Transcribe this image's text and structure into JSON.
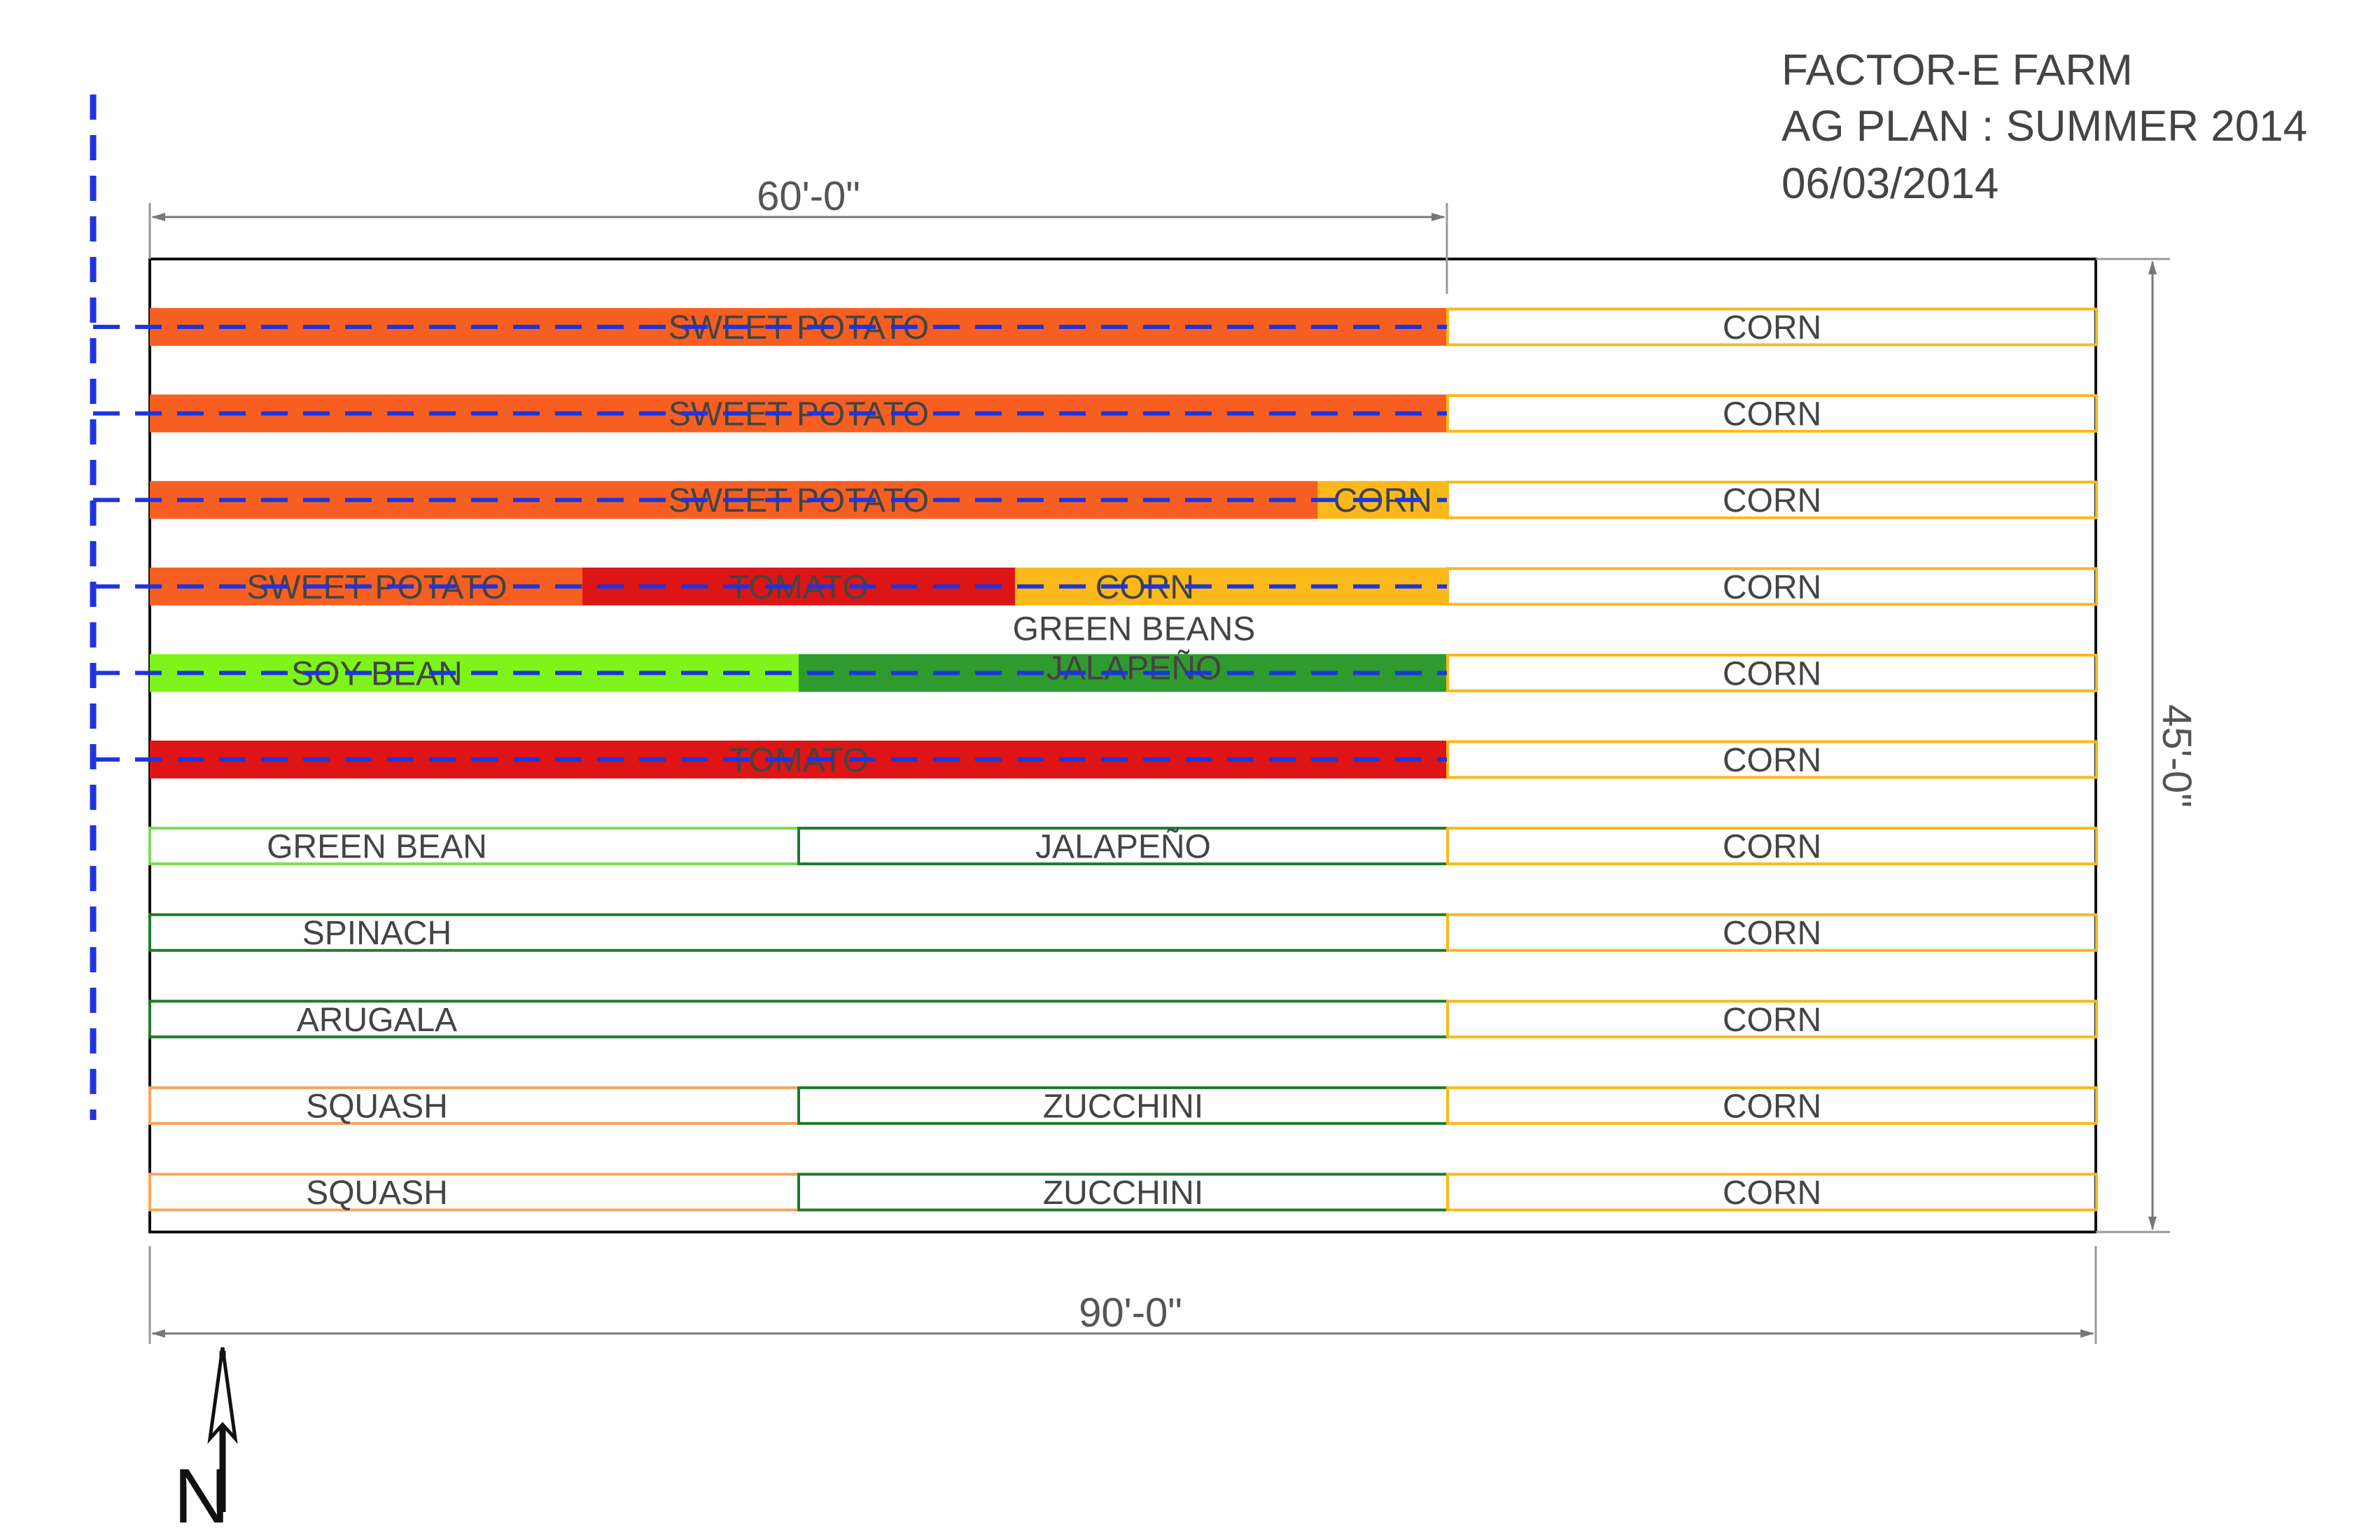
{
  "title_block": {
    "farm": "FACTOR-E FARM",
    "plan": "AG PLAN  :  SUMMER 2014",
    "date": "06/03/2014"
  },
  "dimensions": {
    "top": "60'-0\"",
    "bottom": "90'-0\"",
    "right": "45'-0\""
  },
  "north_label": "N",
  "colors": {
    "sweet_potato": "#f75f22",
    "tomato": "#dd1515",
    "corn": "#fbb81a",
    "soy_bean": "#7ef41a",
    "green_beans_jalapeno": "#2f9b2e",
    "outline_green": "#1e7a2a",
    "outline_lightgreen": "#7ed957",
    "outline_orange": "#f6a55a",
    "outline_corn": "#fbb81a",
    "irrigation": "#1d35e0",
    "dimension_line": "#777777"
  },
  "beds": [
    {
      "segments": [
        {
          "label": "SWEET POTATO",
          "from_ft": 0,
          "to_ft": 60,
          "style": "fill",
          "color": "sweet_potato"
        },
        {
          "label": "CORN",
          "from_ft": 60,
          "to_ft": 90,
          "style": "outline",
          "color": "outline_corn"
        }
      ],
      "irrigated": true
    },
    {
      "segments": [
        {
          "label": "SWEET POTATO",
          "from_ft": 0,
          "to_ft": 60,
          "style": "fill",
          "color": "sweet_potato"
        },
        {
          "label": "CORN",
          "from_ft": 60,
          "to_ft": 90,
          "style": "outline",
          "color": "outline_corn"
        }
      ],
      "irrigated": true
    },
    {
      "segments": [
        {
          "label": "SWEET POTATO",
          "from_ft": 0,
          "to_ft": 54,
          "style": "fill",
          "color": "sweet_potato",
          "label_center_ft": 30
        },
        {
          "label": "CORN",
          "from_ft": 54,
          "to_ft": 60,
          "style": "fill",
          "color": "corn"
        },
        {
          "label": "CORN",
          "from_ft": 60,
          "to_ft": 90,
          "style": "outline",
          "color": "outline_corn"
        }
      ],
      "irrigated": true
    },
    {
      "segments": [
        {
          "label": "SWEET POTATO",
          "from_ft": 0,
          "to_ft": 20,
          "style": "fill",
          "color": "sweet_potato",
          "label_center_ft": 10.5
        },
        {
          "label": "TOMATO",
          "from_ft": 20,
          "to_ft": 40,
          "style": "fill",
          "color": "tomato",
          "label_center_ft": 30
        },
        {
          "label": "CORN",
          "from_ft": 40,
          "to_ft": 60,
          "style": "fill",
          "color": "corn",
          "label_center_ft": 46
        },
        {
          "label": "CORN",
          "from_ft": 60,
          "to_ft": 90,
          "style": "outline",
          "color": "outline_corn"
        }
      ],
      "irrigated": true
    },
    {
      "segments": [
        {
          "label": "SOY BEAN",
          "from_ft": 0,
          "to_ft": 30,
          "style": "fill",
          "color": "soy_bean",
          "label_center_ft": 10.5
        },
        {
          "label": "GREEN BEANS\nJALAPEÑO",
          "from_ft": 30,
          "to_ft": 60,
          "style": "fill",
          "color": "green_beans_jalapeno",
          "label_center_ft": 45.5
        },
        {
          "label": "CORN",
          "from_ft": 60,
          "to_ft": 90,
          "style": "outline",
          "color": "outline_corn"
        }
      ],
      "irrigated": true
    },
    {
      "segments": [
        {
          "label": "TOMATO",
          "from_ft": 0,
          "to_ft": 60,
          "style": "fill",
          "color": "tomato"
        },
        {
          "label": "CORN",
          "from_ft": 60,
          "to_ft": 90,
          "style": "outline",
          "color": "outline_corn"
        }
      ],
      "irrigated": true
    },
    {
      "segments": [
        {
          "label": "GREEN BEAN",
          "from_ft": 0,
          "to_ft": 30,
          "style": "outline",
          "color": "outline_lightgreen",
          "label_center_ft": 10.5
        },
        {
          "label": "JALAPEÑO",
          "from_ft": 30,
          "to_ft": 60,
          "style": "outline",
          "color": "outline_green"
        },
        {
          "label": "CORN",
          "from_ft": 60,
          "to_ft": 90,
          "style": "outline",
          "color": "outline_corn"
        }
      ],
      "irrigated": false
    },
    {
      "segments": [
        {
          "label": "SPINACH",
          "from_ft": 0,
          "to_ft": 60,
          "style": "outline",
          "color": "outline_green",
          "label_center_ft": 10.5
        },
        {
          "label": "CORN",
          "from_ft": 60,
          "to_ft": 90,
          "style": "outline",
          "color": "outline_corn"
        }
      ],
      "irrigated": false
    },
    {
      "segments": [
        {
          "label": "ARUGALA",
          "from_ft": 0,
          "to_ft": 60,
          "style": "outline",
          "color": "outline_green",
          "label_center_ft": 10.5
        },
        {
          "label": "CORN",
          "from_ft": 60,
          "to_ft": 90,
          "style": "outline",
          "color": "outline_corn"
        }
      ],
      "irrigated": false
    },
    {
      "segments": [
        {
          "label": "SQUASH",
          "from_ft": 0,
          "to_ft": 30,
          "style": "outline",
          "color": "outline_orange",
          "label_center_ft": 10.5
        },
        {
          "label": "ZUCCHINI",
          "from_ft": 30,
          "to_ft": 60,
          "style": "outline",
          "color": "outline_green"
        },
        {
          "label": "CORN",
          "from_ft": 60,
          "to_ft": 90,
          "style": "outline",
          "color": "outline_corn"
        }
      ],
      "irrigated": false
    },
    {
      "segments": [
        {
          "label": "SQUASH",
          "from_ft": 0,
          "to_ft": 30,
          "style": "outline",
          "color": "outline_orange",
          "label_center_ft": 10.5
        },
        {
          "label": "ZUCCHINI",
          "from_ft": 30,
          "to_ft": 60,
          "style": "outline",
          "color": "outline_green"
        },
        {
          "label": "CORN",
          "from_ft": 60,
          "to_ft": 90,
          "style": "outline",
          "color": "outline_corn"
        }
      ],
      "irrigated": false
    }
  ]
}
